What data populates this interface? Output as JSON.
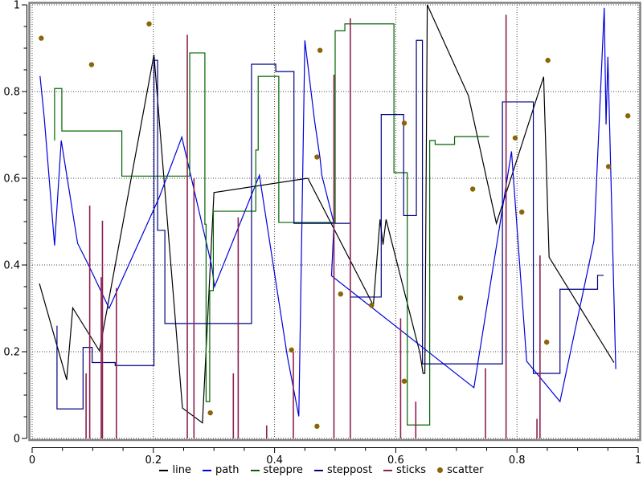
{
  "window": {
    "background": "#ffffff",
    "plot_background": "#ffffff",
    "border_color": "#808080",
    "grid_color": "#444444"
  },
  "legend": {
    "items": [
      {
        "label": "line",
        "color": "#000000",
        "marker": "dash"
      },
      {
        "label": "path",
        "color": "#0000dd",
        "marker": "dash"
      },
      {
        "label": "steppre",
        "color": "#006400",
        "marker": "dash"
      },
      {
        "label": "steppost",
        "color": "#000080",
        "marker": "dash"
      },
      {
        "label": "sticks",
        "color": "#8b2252",
        "marker": "dash"
      },
      {
        "label": "scatter",
        "color": "#8b6508",
        "marker": "dot"
      }
    ]
  },
  "chart_data": {
    "type": "line",
    "title": "",
    "xlabel": "",
    "ylabel": "",
    "xlim": [
      0,
      1
    ],
    "ylim": [
      0,
      1
    ],
    "grid": "dotted",
    "legend_position": "bottom",
    "xticks": {
      "values": [
        0,
        0.2,
        0.4,
        0.6,
        0.8,
        1
      ],
      "labels": [
        "0",
        "0.2",
        "0.4",
        "0.6",
        "0.8",
        "1"
      ]
    },
    "yticks": {
      "values": [
        0,
        0.2,
        0.4,
        0.6,
        0.8,
        1
      ],
      "labels": [
        "0",
        "0.2",
        "0.4",
        "0.6",
        "0.8",
        "1"
      ]
    },
    "minor_tick_step": 0.05,
    "series": [
      {
        "name": "line",
        "style": "polyline",
        "color": "#000000",
        "points": [
          [
            0.012,
            0.357
          ],
          [
            0.057,
            0.135
          ],
          [
            0.067,
            0.301
          ],
          [
            0.111,
            0.202
          ],
          [
            0.201,
            0.885
          ],
          [
            0.248,
            0.07
          ],
          [
            0.281,
            0.036
          ],
          [
            0.3,
            0.567
          ],
          [
            0.455,
            0.6
          ],
          [
            0.563,
            0.307
          ],
          [
            0.574,
            0.505
          ],
          [
            0.579,
            0.447
          ],
          [
            0.584,
            0.505
          ],
          [
            0.64,
            0.196
          ],
          [
            0.645,
            0.15
          ],
          [
            0.648,
            0.15
          ],
          [
            0.652,
            1.0
          ],
          [
            0.72,
            0.79
          ],
          [
            0.766,
            0.496
          ],
          [
            0.844,
            0.834
          ],
          [
            0.853,
            0.418
          ],
          [
            0.96,
            0.175
          ]
        ]
      },
      {
        "name": "path",
        "style": "polyline",
        "color": "#0000dd",
        "points": [
          [
            0.013,
            0.836
          ],
          [
            0.02,
            0.739
          ],
          [
            0.037,
            0.445
          ],
          [
            0.048,
            0.687
          ],
          [
            0.075,
            0.45
          ],
          [
            0.093,
            0.4
          ],
          [
            0.127,
            0.3
          ],
          [
            0.21,
            0.557
          ],
          [
            0.247,
            0.695
          ],
          [
            0.296,
            0.4
          ],
          [
            0.301,
            0.35
          ],
          [
            0.375,
            0.607
          ],
          [
            0.421,
            0.19
          ],
          [
            0.44,
            0.051
          ],
          [
            0.45,
            0.918
          ],
          [
            0.466,
            0.733
          ],
          [
            0.475,
            0.647
          ],
          [
            0.478,
            0.607
          ],
          [
            0.498,
            0.496
          ],
          [
            0.494,
            0.375
          ],
          [
            0.729,
            0.117
          ],
          [
            0.791,
            0.662
          ],
          [
            0.816,
            0.178
          ],
          [
            0.871,
            0.085
          ],
          [
            0.927,
            0.456
          ],
          [
            0.944,
            0.993
          ],
          [
            0.947,
            0.724
          ],
          [
            0.95,
            0.88
          ],
          [
            0.963,
            0.16
          ]
        ]
      },
      {
        "name": "steppre",
        "style": "polyline",
        "color": "#006400",
        "points": [
          [
            0.037,
            0.687
          ],
          [
            0.037,
            0.807
          ],
          [
            0.049,
            0.807
          ],
          [
            0.049,
            0.709
          ],
          [
            0.148,
            0.709
          ],
          [
            0.148,
            0.605
          ],
          [
            0.26,
            0.605
          ],
          [
            0.26,
            0.889
          ],
          [
            0.285,
            0.889
          ],
          [
            0.285,
            0.494
          ],
          [
            0.287,
            0.494
          ],
          [
            0.287,
            0.085
          ],
          [
            0.293,
            0.085
          ],
          [
            0.293,
            0.341
          ],
          [
            0.299,
            0.341
          ],
          [
            0.299,
            0.524
          ],
          [
            0.369,
            0.524
          ],
          [
            0.369,
            0.665
          ],
          [
            0.373,
            0.665
          ],
          [
            0.373,
            0.835
          ],
          [
            0.407,
            0.835
          ],
          [
            0.407,
            0.498
          ],
          [
            0.5,
            0.498
          ],
          [
            0.5,
            0.94
          ],
          [
            0.516,
            0.94
          ],
          [
            0.516,
            0.956
          ],
          [
            0.597,
            0.956
          ],
          [
            0.597,
            0.613
          ],
          [
            0.619,
            0.613
          ],
          [
            0.619,
            0.031
          ],
          [
            0.656,
            0.031
          ],
          [
            0.656,
            0.687
          ],
          [
            0.665,
            0.687
          ],
          [
            0.665,
            0.678
          ],
          [
            0.697,
            0.678
          ],
          [
            0.697,
            0.696
          ],
          [
            0.754,
            0.696
          ]
        ]
      },
      {
        "name": "steppost",
        "style": "polyline",
        "color": "#000080",
        "points": [
          [
            0.041,
            0.26
          ],
          [
            0.041,
            0.068
          ],
          [
            0.084,
            0.068
          ],
          [
            0.084,
            0.21
          ],
          [
            0.099,
            0.21
          ],
          [
            0.099,
            0.175
          ],
          [
            0.137,
            0.175
          ],
          [
            0.137,
            0.168
          ],
          [
            0.201,
            0.168
          ],
          [
            0.201,
            0.872
          ],
          [
            0.207,
            0.872
          ],
          [
            0.207,
            0.48
          ],
          [
            0.219,
            0.48
          ],
          [
            0.219,
            0.265
          ],
          [
            0.362,
            0.265
          ],
          [
            0.362,
            0.863
          ],
          [
            0.402,
            0.863
          ],
          [
            0.402,
            0.846
          ],
          [
            0.432,
            0.846
          ],
          [
            0.432,
            0.496
          ],
          [
            0.525,
            0.496
          ],
          [
            0.525,
            0.326
          ],
          [
            0.576,
            0.326
          ],
          [
            0.576,
            0.747
          ],
          [
            0.613,
            0.747
          ],
          [
            0.613,
            0.514
          ],
          [
            0.634,
            0.514
          ],
          [
            0.634,
            0.918
          ],
          [
            0.644,
            0.918
          ],
          [
            0.644,
            0.172
          ],
          [
            0.776,
            0.172
          ],
          [
            0.776,
            0.776
          ],
          [
            0.827,
            0.776
          ],
          [
            0.827,
            0.15
          ],
          [
            0.871,
            0.15
          ],
          [
            0.871,
            0.344
          ],
          [
            0.933,
            0.344
          ],
          [
            0.933,
            0.376
          ],
          [
            0.943,
            0.376
          ]
        ]
      },
      {
        "name": "sticks",
        "style": "sticks",
        "color": "#8b2252",
        "points": [
          [
            0.089,
            0.15
          ],
          [
            0.095,
            0.537
          ],
          [
            0.114,
            0.372
          ],
          [
            0.116,
            0.502
          ],
          [
            0.139,
            0.347
          ],
          [
            0.256,
            0.931
          ],
          [
            0.267,
            0.6
          ],
          [
            0.332,
            0.15
          ],
          [
            0.34,
            0.51
          ],
          [
            0.387,
            0.03
          ],
          [
            0.431,
            0.2
          ],
          [
            0.498,
            0.839
          ],
          [
            0.525,
            0.969
          ],
          [
            0.608,
            0.277
          ],
          [
            0.633,
            0.085
          ],
          [
            0.748,
            0.162
          ],
          [
            0.782,
            0.977
          ],
          [
            0.833,
            0.045
          ],
          [
            0.838,
            0.422
          ]
        ]
      },
      {
        "name": "scatter",
        "style": "scatter",
        "color": "#8b6508",
        "points": [
          [
            0.015,
            0.923
          ],
          [
            0.098,
            0.862
          ],
          [
            0.193,
            0.956
          ],
          [
            0.294,
            0.059
          ],
          [
            0.428,
            0.204
          ],
          [
            0.47,
            0.028
          ],
          [
            0.47,
            0.649
          ],
          [
            0.475,
            0.895
          ],
          [
            0.509,
            0.333
          ],
          [
            0.56,
            0.307
          ],
          [
            0.614,
            0.727
          ],
          [
            0.614,
            0.132
          ],
          [
            0.707,
            0.324
          ],
          [
            0.727,
            0.575
          ],
          [
            0.797,
            0.693
          ],
          [
            0.808,
            0.522
          ],
          [
            0.849,
            0.222
          ],
          [
            0.851,
            0.872
          ],
          [
            0.951,
            0.627
          ],
          [
            0.983,
            0.744
          ]
        ]
      }
    ]
  }
}
